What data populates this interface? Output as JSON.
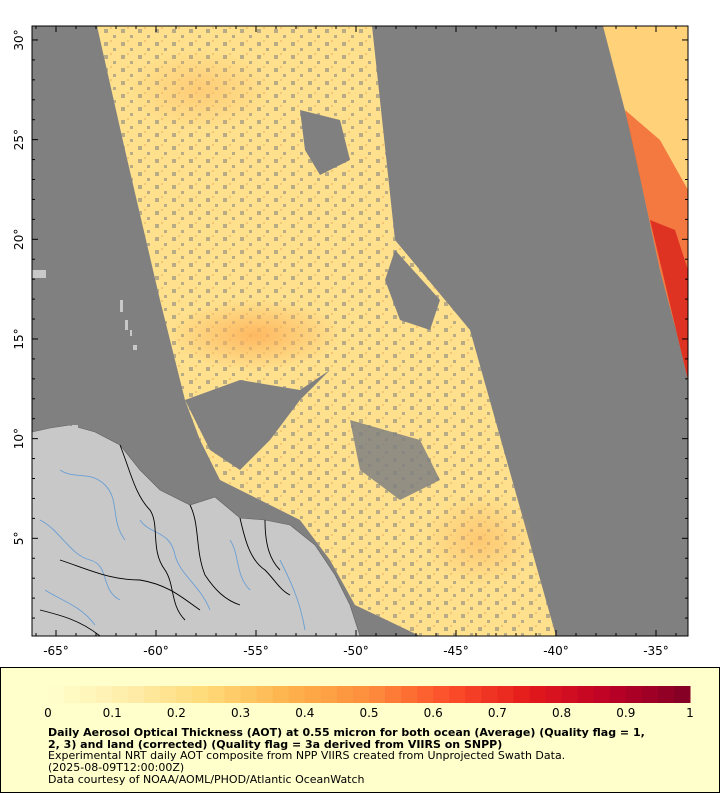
{
  "map": {
    "x_ticks": [
      {
        "lon": -65,
        "label": "-65°"
      },
      {
        "lon": -60,
        "label": "-60°"
      },
      {
        "lon": -55,
        "label": "-55°"
      },
      {
        "lon": -50,
        "label": "-50°"
      },
      {
        "lon": -45,
        "label": "-45°"
      },
      {
        "lon": -40,
        "label": "-40°"
      },
      {
        "lon": -35,
        "label": "-35°"
      }
    ],
    "y_ticks": [
      {
        "lat": 5,
        "label": "5°"
      },
      {
        "lat": 10,
        "label": "10°"
      },
      {
        "lat": 15,
        "label": "15°"
      },
      {
        "lat": 20,
        "label": "20°"
      },
      {
        "lat": 25,
        "label": "25°"
      },
      {
        "lat": 30,
        "label": "30°"
      }
    ],
    "lon_range": [
      -66.2,
      -33.4
    ],
    "lat_range": [
      0.1,
      30.7
    ],
    "colors": {
      "no_data": "#808080",
      "land": "#c8c8c8",
      "rivers": "#6a9fd4",
      "borders": "#000000"
    }
  },
  "colorbar": {
    "tick_labels": [
      "0",
      "0.1",
      "0.2",
      "0.3",
      "0.4",
      "0.5",
      "0.6",
      "0.7",
      "0.8",
      "0.9",
      "1"
    ],
    "min": 0,
    "max": 1,
    "colors": [
      "#ffffcc",
      "#ffedaa",
      "#fed976",
      "#feb24c",
      "#fd8d3c",
      "#fc4e2a",
      "#e31a1c",
      "#bd0026",
      "#800026"
    ]
  },
  "caption": {
    "title": "Daily Aerosol Optical Thickness (AOT) at 0.55 micron for both ocean (Average) (Quality flag = 1,\n2, 3) and land (corrected) (Quality flag = 3a derived from VIIRS on SNPP)",
    "line1": "Experimental NRT daily AOT composite from NPP VIIRS created from Unprojected Swath Data.",
    "line2": "(2025-08-09T12:00:00Z)",
    "line3": "Data courtesy of NOAA/AOML/PHOD/Atlantic OceanWatch"
  }
}
